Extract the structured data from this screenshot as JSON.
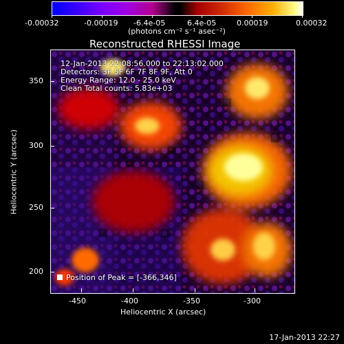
{
  "colorbar": {
    "ticks": [
      "-0.00032",
      "-0.00019",
      "-6.4e-05",
      "6.4e-05",
      "0.00019",
      "0.00032"
    ],
    "unit_label": "(photons cm⁻² s⁻¹ asec⁻²)"
  },
  "plot": {
    "title": "Reconstructed RHESSI Image",
    "time_range": "12-Jan-2013 22:08:56.000 to 22:13:02.000",
    "detectors": "Detectors: 3F 5F 6F 7F 8F 9F, Att 0",
    "energy": "Energy Range: 12.0 - 25.0 keV",
    "clean": "Clean     Total counts: 5.83e+03",
    "peak": "Position of Peak = [-366,346]",
    "xlabel": "Heliocentric X (arcsec)",
    "ylabel": "Heliocentric Y (arcsec)",
    "xticks": [
      "-450",
      "-400",
      "-350",
      "-300"
    ],
    "yticks": [
      "350",
      "300",
      "250",
      "200"
    ]
  },
  "footer": {
    "timestamp": "17-Jan-2013 22:27"
  }
}
